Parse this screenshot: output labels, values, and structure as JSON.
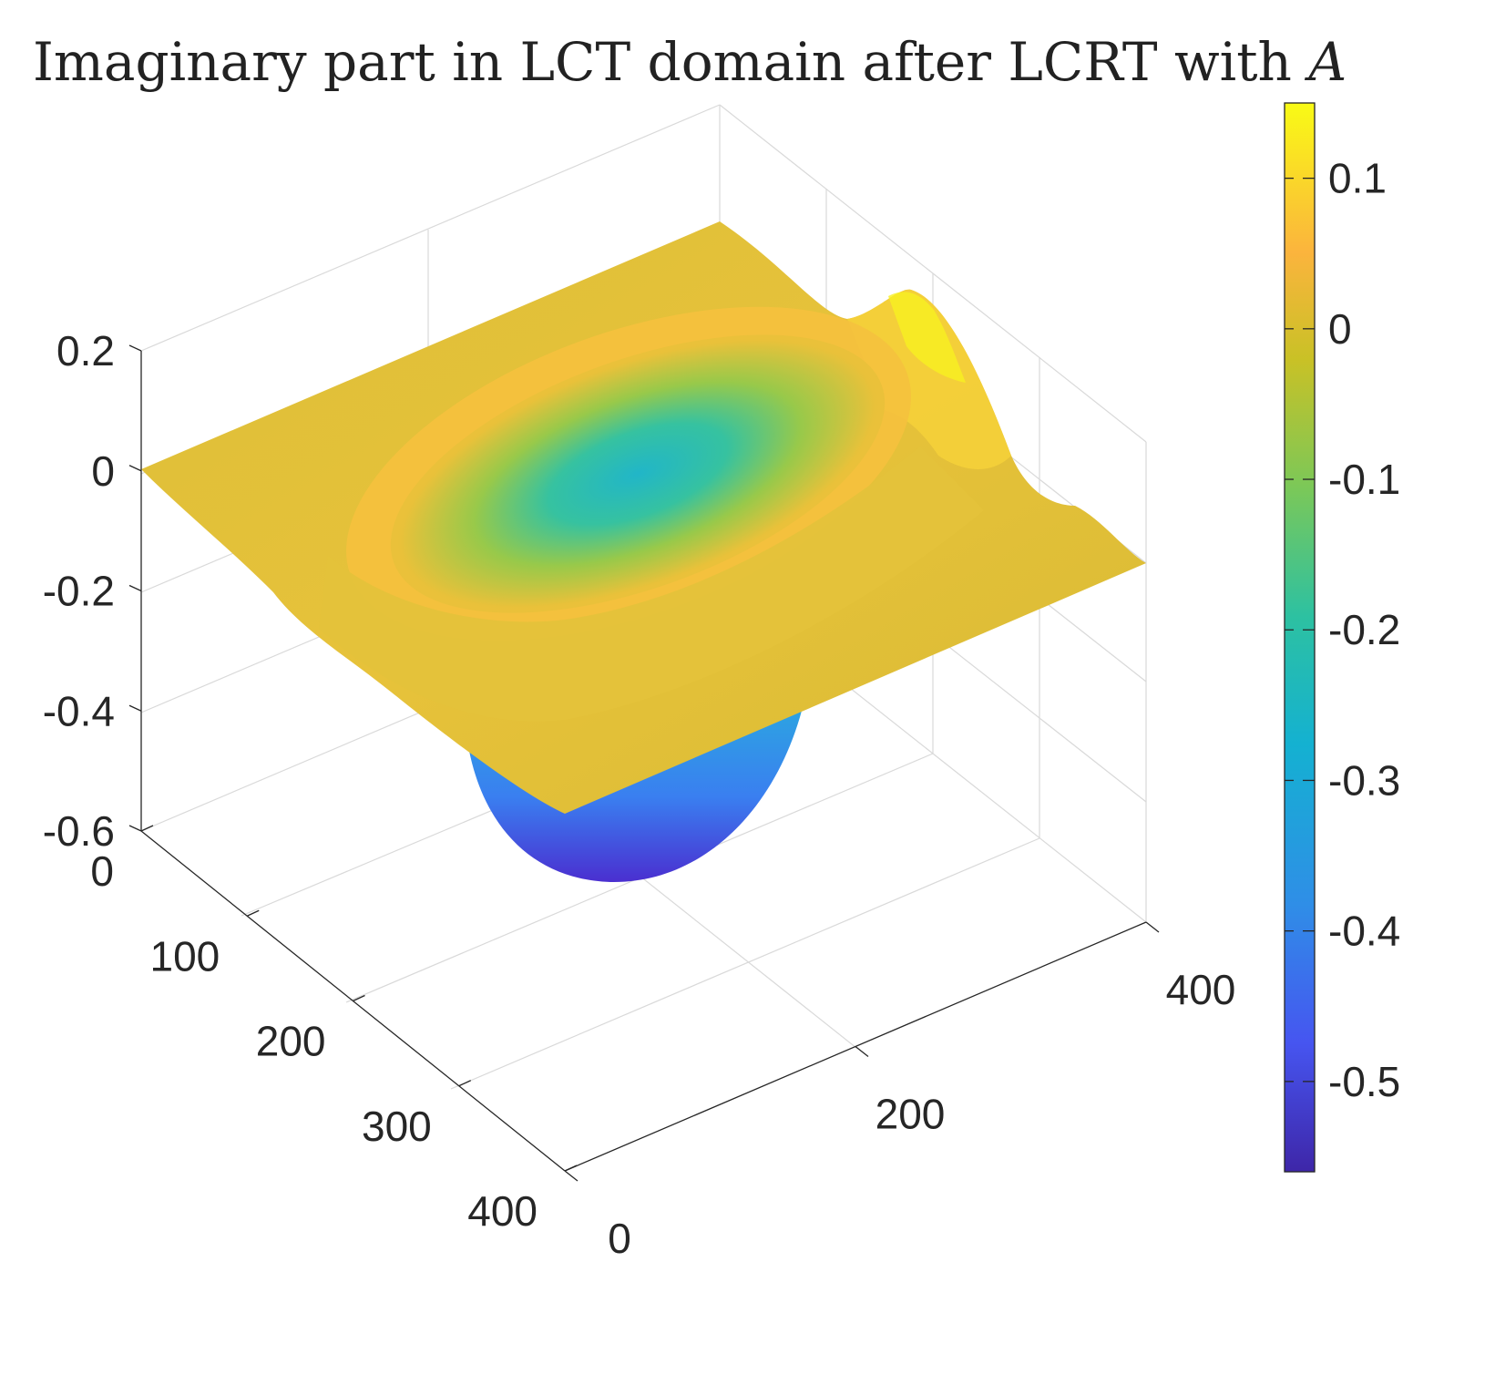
{
  "chart_data": {
    "type": "surface",
    "title": "Imaginary part in LCT domain after LCRT with",
    "title_symbol": "A",
    "x_axis": {
      "label": "",
      "range": [
        0,
        400
      ],
      "ticks": [
        0,
        200,
        400
      ],
      "tick_labels": [
        "0",
        "200",
        "400"
      ]
    },
    "y_axis": {
      "label": "",
      "range": [
        0,
        400
      ],
      "ticks": [
        0,
        100,
        200,
        300,
        400
      ],
      "tick_labels": [
        "0",
        "100",
        "200",
        "300",
        "400"
      ]
    },
    "z_axis": {
      "label": "",
      "range": [
        -0.6,
        0.2
      ],
      "ticks": [
        0.2,
        0,
        -0.2,
        -0.4,
        -0.6
      ],
      "tick_labels": [
        "0.2",
        "0",
        "-0.2",
        "-0.4",
        "-0.6"
      ]
    },
    "colorbar": {
      "range": [
        -0.56,
        0.15
      ],
      "ticks": [
        0.1,
        0,
        -0.1,
        -0.2,
        -0.3,
        -0.4,
        -0.5
      ],
      "tick_labels": [
        "0.1",
        "0",
        "-0.1",
        "-0.2",
        "-0.3",
        "-0.4",
        "-0.5"
      ],
      "colormap": "parula"
    },
    "surface": {
      "description_values": {
        "baseline": 0.02,
        "center_min": -0.55,
        "center_x": 200,
        "center_y": 200,
        "ridge_max": 0.15
      }
    },
    "grid": true,
    "legend": "none"
  },
  "colors": {
    "axis": "#262626",
    "grid": "#d9d9d9",
    "parula_low": "#3e26a8",
    "parula_mid": "#19b2b4",
    "parula_high": "#f9fb15"
  }
}
